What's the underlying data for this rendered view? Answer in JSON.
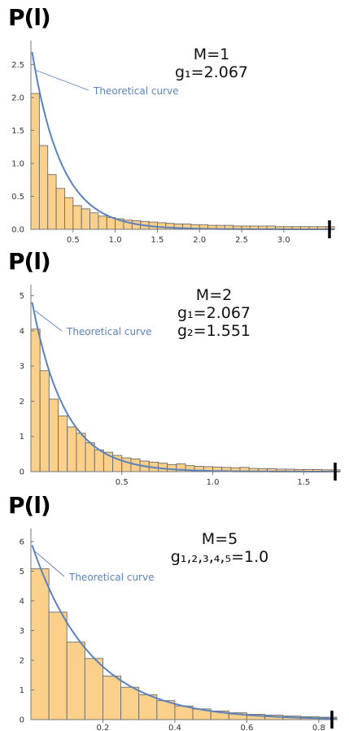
{
  "chart_data": [
    {
      "type": "bar",
      "ylabel": "P(l)",
      "annotation": [
        "M=1",
        "g₁=2.067"
      ],
      "curve_label": "Theoretical curve",
      "bin_width": 0.1,
      "values": [
        2.06,
        1.27,
        0.83,
        0.62,
        0.48,
        0.36,
        0.31,
        0.25,
        0.2,
        0.18,
        0.16,
        0.14,
        0.13,
        0.12,
        0.11,
        0.1,
        0.09,
        0.08,
        0.08,
        0.07,
        0.07,
        0.06,
        0.06,
        0.06,
        0.05,
        0.05,
        0.05,
        0.05,
        0.05,
        0.04,
        0.04,
        0.04,
        0.04,
        0.04,
        0.04,
        0.04
      ],
      "curve": {
        "a": 2.8,
        "b": 0.35
      },
      "xlim": [
        0,
        3.6
      ],
      "ylim": [
        0,
        2.8
      ],
      "xticks": [
        0.5,
        1.0,
        1.5,
        2.0,
        2.5,
        3.0
      ],
      "xtick_labels": [
        "0.5",
        "1.0",
        "1.5",
        "2.0",
        "2.5",
        "3.0"
      ],
      "yticks": [
        0.0,
        0.5,
        1.0,
        1.5,
        2.0,
        2.5
      ],
      "ytick_labels": [
        "0.0",
        "0.5",
        "1.0",
        "1.5",
        "2.0",
        "2.5"
      ],
      "bar_color": "#fad08a",
      "bar_edge": "#6b6b6b",
      "curve_color": "#5b82bf"
    },
    {
      "type": "bar",
      "ylabel": "P(l)",
      "annotation": [
        "M=2",
        "g₁=2.067",
        "g₂=1.551"
      ],
      "curve_label": "Theoretical curve",
      "bin_width": 0.05,
      "values": [
        4.05,
        2.87,
        2.06,
        1.58,
        1.27,
        1.09,
        0.82,
        0.62,
        0.55,
        0.46,
        0.39,
        0.36,
        0.3,
        0.27,
        0.24,
        0.2,
        0.22,
        0.17,
        0.15,
        0.14,
        0.13,
        0.12,
        0.11,
        0.12,
        0.09,
        0.08,
        0.08,
        0.07,
        0.07,
        0.06,
        0.06,
        0.06,
        0.05,
        0.05
      ],
      "curve": {
        "a": 5.0,
        "b": 0.18
      },
      "xlim": [
        0,
        1.7
      ],
      "ylim": [
        0,
        5.2
      ],
      "xticks": [
        0.5,
        1.0,
        1.5
      ],
      "xtick_labels": [
        "0.5",
        "1.0",
        "1.5"
      ],
      "yticks": [
        0,
        1,
        2,
        3,
        4,
        5
      ],
      "ytick_labels": [
        "0",
        "1",
        "2",
        "3",
        "4",
        "5"
      ],
      "bar_color": "#fad08a",
      "bar_edge": "#6b6b6b",
      "curve_color": "#5b82bf"
    },
    {
      "type": "bar",
      "ylabel": "P(l)",
      "annotation": [
        "M=5",
        "g₁,₂,₃,₄,₅=1.0"
      ],
      "curve_label": "Theoretical curve",
      "bin_width": 0.05,
      "values": [
        5.08,
        3.62,
        2.61,
        2.06,
        1.47,
        1.09,
        0.84,
        0.64,
        0.46,
        0.36,
        0.29,
        0.23,
        0.18,
        0.15,
        0.12,
        0.1,
        0.08
      ],
      "curve": {
        "a": 6.0,
        "b": 0.165
      },
      "xlim": [
        0,
        0.85
      ],
      "ylim": [
        0,
        6.3
      ],
      "xticks": [
        0.2,
        0.4,
        0.6,
        0.8
      ],
      "xtick_labels": [
        "0.2",
        "0.4",
        "0.6",
        "0.8"
      ],
      "yticks": [
        0,
        1,
        2,
        3,
        4,
        5,
        6
      ],
      "ytick_labels": [
        "0",
        "1",
        "2",
        "3",
        "4",
        "5",
        "6"
      ],
      "bar_color": "#fad08a",
      "bar_edge": "#6b6b6b",
      "curve_color": "#5b82bf"
    }
  ]
}
